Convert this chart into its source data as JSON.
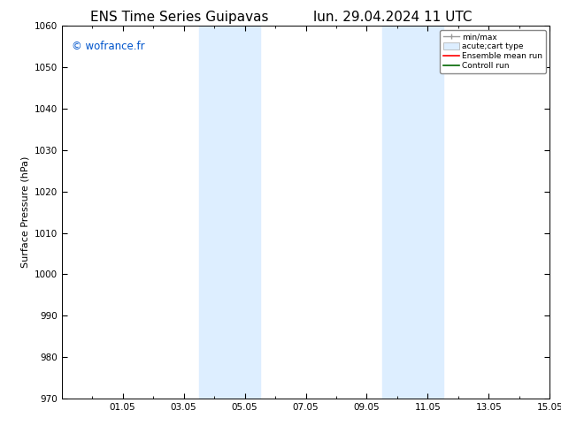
{
  "title_left": "ENS Time Series Guipavas",
  "title_right": "lun. 29.04.2024 11 UTC",
  "ylabel": "Surface Pressure (hPa)",
  "ylim": [
    970,
    1060
  ],
  "yticks": [
    970,
    980,
    990,
    1000,
    1010,
    1020,
    1030,
    1040,
    1050,
    1060
  ],
  "xtick_labels": [
    "01.05",
    "03.05",
    "05.05",
    "07.05",
    "09.05",
    "11.05",
    "13.05",
    "15.05"
  ],
  "xtick_positions": [
    2,
    4,
    6,
    8,
    10,
    12,
    14,
    16
  ],
  "shade_bands": [
    {
      "x_start": 4.5,
      "x_end": 5.5,
      "color": "#ddeeff"
    },
    {
      "x_start": 5.5,
      "x_end": 6.5,
      "color": "#ddeeff"
    },
    {
      "x_start": 10.5,
      "x_end": 11.5,
      "color": "#ddeeff"
    },
    {
      "x_start": 11.5,
      "x_end": 12.5,
      "color": "#ddeeff"
    }
  ],
  "watermark_text": "© wofrance.fr",
  "watermark_color": "#0055cc",
  "legend_entries": [
    {
      "label": "min/max"
    },
    {
      "label": "acute;cart type"
    },
    {
      "label": "Ensemble mean run"
    },
    {
      "label": "Controll run"
    }
  ],
  "bg_color": "#ffffff",
  "title_fontsize": 11,
  "axis_label_fontsize": 8,
  "tick_fontsize": 7.5
}
